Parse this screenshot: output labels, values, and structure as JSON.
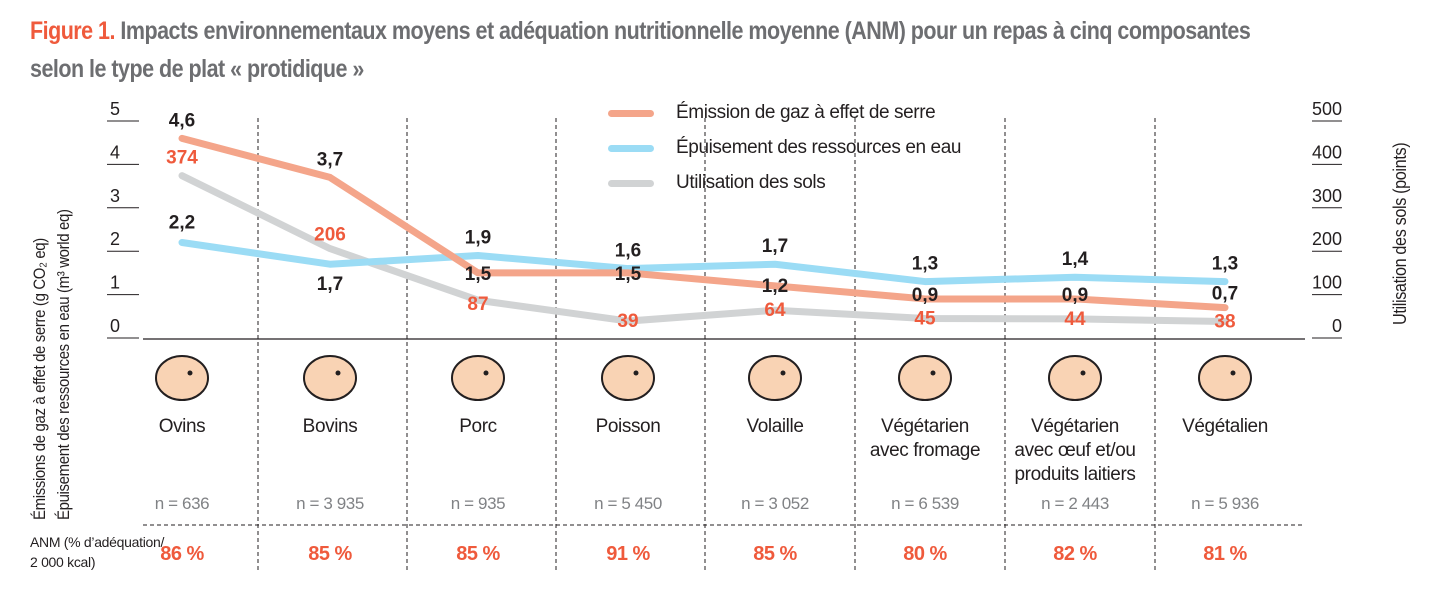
{
  "title": {
    "figure": "Figure 1.",
    "text": "Impacts environnementaux moyens et adéquation nutritionnelle moyenne (ANM) pour un repas à cinq composantes selon le type de plat « protidique »"
  },
  "chart_data": {
    "type": "line",
    "categories": [
      "Ovins",
      "Bovins",
      "Porc",
      "Poisson",
      "Volaille",
      "Végétarien avec fromage",
      "Végétarien avec œuf et/ou produits laitiers",
      "Végétalien"
    ],
    "category_lines": [
      [
        "Ovins"
      ],
      [
        "Bovins"
      ],
      [
        "Porc"
      ],
      [
        "Poisson"
      ],
      [
        "Volaille"
      ],
      [
        "Végétarien",
        "avec fromage"
      ],
      [
        "Végétarien",
        "avec œuf et/ou",
        "produits laitiers"
      ],
      [
        "Végétalien"
      ]
    ],
    "icons": [
      "sheep-icon",
      "cow-icon",
      "pig-icon",
      "fish-icon",
      "chicken-icon",
      "cheese-icon",
      "eggs-milk-icon",
      "broccoli-icon"
    ],
    "series": [
      {
        "name": "Émission de gaz à effet de serre",
        "axis": "left",
        "color": "#f4a58a",
        "values": [
          4.6,
          3.7,
          1.5,
          1.5,
          1.2,
          0.9,
          0.9,
          0.7
        ],
        "labels": [
          "4,6",
          "3,7",
          "1,5",
          "1,5",
          "1,2",
          "0,9",
          "0,9",
          "0,7"
        ]
      },
      {
        "name": "Épuisement des ressources en eau",
        "axis": "left",
        "color": "#9bdcf5",
        "values": [
          2.2,
          1.7,
          1.9,
          1.6,
          1.7,
          1.3,
          1.4,
          1.3
        ],
        "labels": [
          "2,2",
          "1,7",
          "1,9",
          "1,6",
          "1,7",
          "1,3",
          "1,4",
          "1,3"
        ]
      },
      {
        "name": "Utilisation des sols",
        "axis": "right",
        "color": "#d1d3d4",
        "values": [
          374,
          206,
          87,
          39,
          64,
          45,
          44,
          38
        ],
        "labels": [
          "374",
          "206",
          "87",
          "39",
          "64",
          "45",
          "44",
          "38"
        ]
      }
    ],
    "ylabel_left": [
      "Émissions de gaz à effet de serre (g CO₂ eq)",
      "Épuisement des ressources en eau (m³ world eq)"
    ],
    "ylabel_right": "Utilisation des sols (points)",
    "ylim_left": [
      0,
      5
    ],
    "ylim_right": [
      0,
      500
    ],
    "yticks_left": [
      "0",
      "1",
      "2",
      "3",
      "4",
      "5"
    ],
    "yticks_right": [
      "0",
      "100",
      "200",
      "300",
      "400",
      "500"
    ],
    "legend_position": "top-center",
    "n": [
      "n = 636",
      "n = 3 935",
      "n = 935",
      "n = 5 450",
      "n = 3 052",
      "n = 6 539",
      "n = 2 443",
      "n = 5 936"
    ],
    "anm_label": [
      "ANM (% d’adéquation/",
      "2 000 kcal)"
    ],
    "anm": [
      "86 %",
      "85 %",
      "85 %",
      "91 %",
      "85 %",
      "80 %",
      "82 %",
      "81 %"
    ],
    "anm_values": [
      86,
      85,
      85,
      91,
      85,
      80,
      82,
      81
    ]
  },
  "colors": {
    "accent": "#ef5a3c",
    "icon_fill": "#f9d3b4"
  }
}
